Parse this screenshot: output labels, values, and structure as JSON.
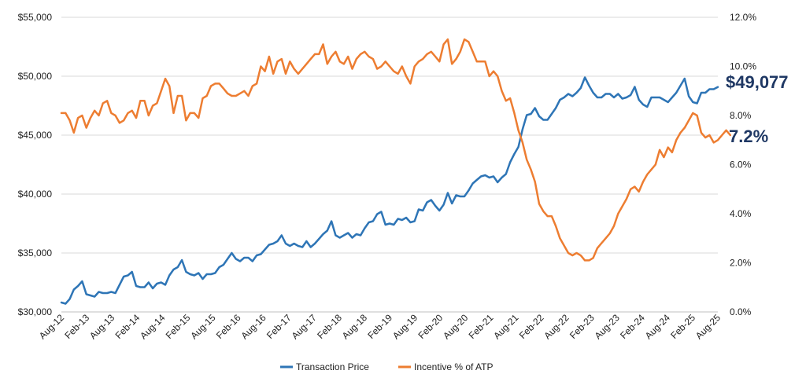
{
  "chart_data": {
    "type": "line",
    "x_tick_labels": [
      "Aug-12",
      "Feb-13",
      "Aug-13",
      "Feb-14",
      "Aug-14",
      "Feb-15",
      "Aug-15",
      "Feb-16",
      "Aug-16",
      "Feb-17",
      "Aug-17",
      "Feb-18",
      "Aug-18",
      "Feb-19",
      "Aug-19",
      "Feb-20",
      "Aug-20",
      "Feb-21",
      "Aug-21",
      "Feb-22",
      "Aug-22",
      "Feb-23",
      "Aug-23",
      "Feb-24",
      "Aug-24",
      "Feb-25",
      "Aug-25"
    ],
    "y_left": {
      "ticks": [
        30000,
        35000,
        40000,
        45000,
        50000,
        55000
      ],
      "tick_labels": [
        "$30,000",
        "$35,000",
        "$40,000",
        "$45,000",
        "$50,000",
        "$55,000"
      ],
      "range": [
        30000,
        55000
      ]
    },
    "y_right": {
      "ticks": [
        0,
        2,
        4,
        6,
        8,
        10,
        12
      ],
      "tick_labels": [
        "0.0%",
        "2.0%",
        "4.0%",
        "6.0%",
        "8.0%",
        "10.0%",
        "12.0%"
      ],
      "range": [
        0,
        12
      ]
    },
    "grid": "horizontal",
    "legend_position": "bottom",
    "series": [
      {
        "name": "Transaction Price",
        "axis": "left",
        "color": "#2E75B6",
        "values": [
          30800,
          30700,
          31100,
          31900,
          32200,
          32600,
          31500,
          31400,
          31300,
          31700,
          31600,
          31600,
          31700,
          31600,
          32300,
          33000,
          33100,
          33400,
          32200,
          32100,
          32100,
          32500,
          32000,
          32400,
          32500,
          32300,
          33100,
          33600,
          33800,
          34400,
          33400,
          33200,
          33100,
          33300,
          32800,
          33200,
          33200,
          33300,
          33800,
          34000,
          34500,
          35000,
          34500,
          34300,
          34600,
          34600,
          34300,
          34800,
          34900,
          35300,
          35700,
          35800,
          36000,
          36500,
          35800,
          35600,
          35800,
          35600,
          35500,
          36000,
          35500,
          35800,
          36200,
          36600,
          36900,
          37700,
          36500,
          36300,
          36500,
          36700,
          36300,
          36600,
          36500,
          37100,
          37600,
          37700,
          38300,
          38500,
          37400,
          37500,
          37400,
          37900,
          37800,
          38000,
          37600,
          37700,
          38700,
          38600,
          39300,
          39500,
          39000,
          38600,
          39100,
          40100,
          39200,
          39900,
          39800,
          39800,
          40300,
          40900,
          41200,
          41500,
          41600,
          41400,
          41500,
          41000,
          41400,
          41700,
          42700,
          43400,
          44000,
          45500,
          46700,
          46800,
          47300,
          46600,
          46300,
          46300,
          46800,
          47300,
          48000,
          48200,
          48500,
          48300,
          48600,
          49000,
          49900,
          49200,
          48600,
          48200,
          48200,
          48500,
          48500,
          48200,
          48500,
          48100,
          48200,
          48400,
          49100,
          48000,
          47600,
          47400,
          48200,
          48200,
          48200,
          48000,
          47800,
          48200,
          48600,
          49200,
          49800,
          48300,
          47800,
          47700,
          48600,
          48600,
          48900,
          48900,
          49077
        ]
      },
      {
        "name": "Incentive % of ATP",
        "axis": "right",
        "color": "#ED7D31",
        "values": [
          8.1,
          8.1,
          7.8,
          7.3,
          7.9,
          8.0,
          7.5,
          7.9,
          8.2,
          8.0,
          8.5,
          8.6,
          8.1,
          8.0,
          7.7,
          7.8,
          8.1,
          8.2,
          7.9,
          8.6,
          8.6,
          8.0,
          8.4,
          8.5,
          9.0,
          9.5,
          9.2,
          8.1,
          8.8,
          8.8,
          7.8,
          8.1,
          8.1,
          7.9,
          8.7,
          8.8,
          9.2,
          9.3,
          9.3,
          9.1,
          8.9,
          8.8,
          8.8,
          8.9,
          9.0,
          8.8,
          9.2,
          9.3,
          10.0,
          9.8,
          10.4,
          9.7,
          10.2,
          10.3,
          9.7,
          10.2,
          9.9,
          9.7,
          9.9,
          10.1,
          10.3,
          10.5,
          10.5,
          10.9,
          10.1,
          10.4,
          10.6,
          10.2,
          10.1,
          10.4,
          9.9,
          10.3,
          10.5,
          10.6,
          10.4,
          10.3,
          9.9,
          10.0,
          10.2,
          10.0,
          9.8,
          9.7,
          10.0,
          9.6,
          9.3,
          10.0,
          10.2,
          10.3,
          10.5,
          10.6,
          10.4,
          10.2,
          10.9,
          11.1,
          10.1,
          10.3,
          10.6,
          11.1,
          11.0,
          10.6,
          10.2,
          10.2,
          10.2,
          9.6,
          9.8,
          9.6,
          9.0,
          8.6,
          8.7,
          8.1,
          7.4,
          6.9,
          6.2,
          5.8,
          5.3,
          4.4,
          4.1,
          3.9,
          3.9,
          3.5,
          3.0,
          2.7,
          2.4,
          2.3,
          2.4,
          2.3,
          2.1,
          2.1,
          2.2,
          2.6,
          2.8,
          3.0,
          3.2,
          3.5,
          4.0,
          4.3,
          4.6,
          5.0,
          5.1,
          4.9,
          5.3,
          5.6,
          5.8,
          6.0,
          6.6,
          6.3,
          6.7,
          6.5,
          7.0,
          7.3,
          7.5,
          7.8,
          8.1,
          8.0,
          7.3,
          7.1,
          7.2,
          6.9,
          7.0,
          7.2,
          7.4,
          7.2
        ]
      }
    ],
    "callouts": {
      "price": "$49,077",
      "incentive": "7.2%"
    }
  }
}
